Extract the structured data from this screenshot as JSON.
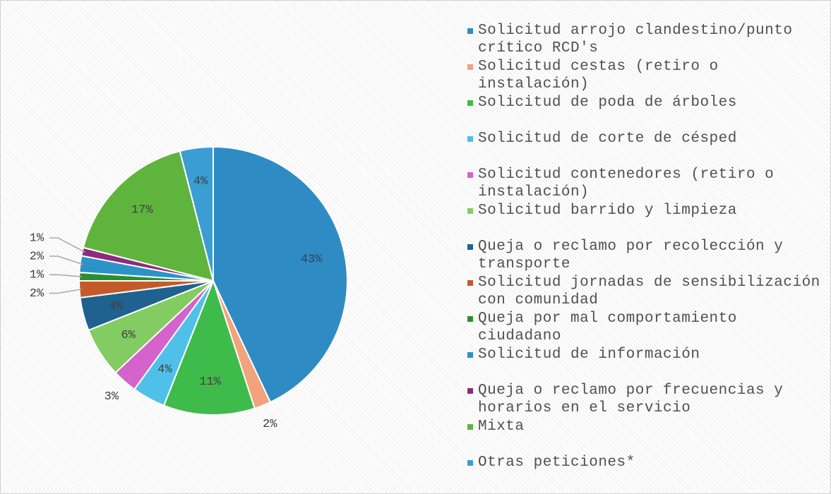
{
  "chart_data": {
    "type": "pie",
    "categories": [
      "Solicitud arrojo clandestino/punto crítico RCD's",
      "Solicitud cestas (retiro o instalación)",
      "Solicitud de poda de árboles",
      "Solicitud de corte de césped",
      "Solicitud contenedores (retiro o instalación)",
      "Solicitud barrido y limpieza",
      "Queja o reclamo por recolección y transporte",
      "Solicitud jornadas de sensibilización con comunidad",
      "Queja por mal comportamiento ciudadano",
      "Solicitud de información",
      "Queja o reclamo por frecuencias y horarios en el servicio",
      "Mixta",
      "Otras peticiones*"
    ],
    "values": [
      43,
      2,
      11,
      4,
      3,
      6,
      4,
      2,
      1,
      2,
      1,
      17,
      4
    ],
    "value_labels": [
      "43%",
      "2%",
      "11%",
      "4%",
      "3%",
      "6%",
      "4%",
      "2%",
      "1%",
      "2%",
      "1%",
      "17%",
      "4%"
    ],
    "colors": [
      "#2f8bc4",
      "#f2a27c",
      "#3fbb4c",
      "#4fc0ea",
      "#d463cb",
      "#82cc62",
      "#1f6290",
      "#c45a2a",
      "#2b8f2e",
      "#2b93c6",
      "#8c2a7e",
      "#5fb43e",
      "#3a9dd4"
    ],
    "legend": "right"
  }
}
